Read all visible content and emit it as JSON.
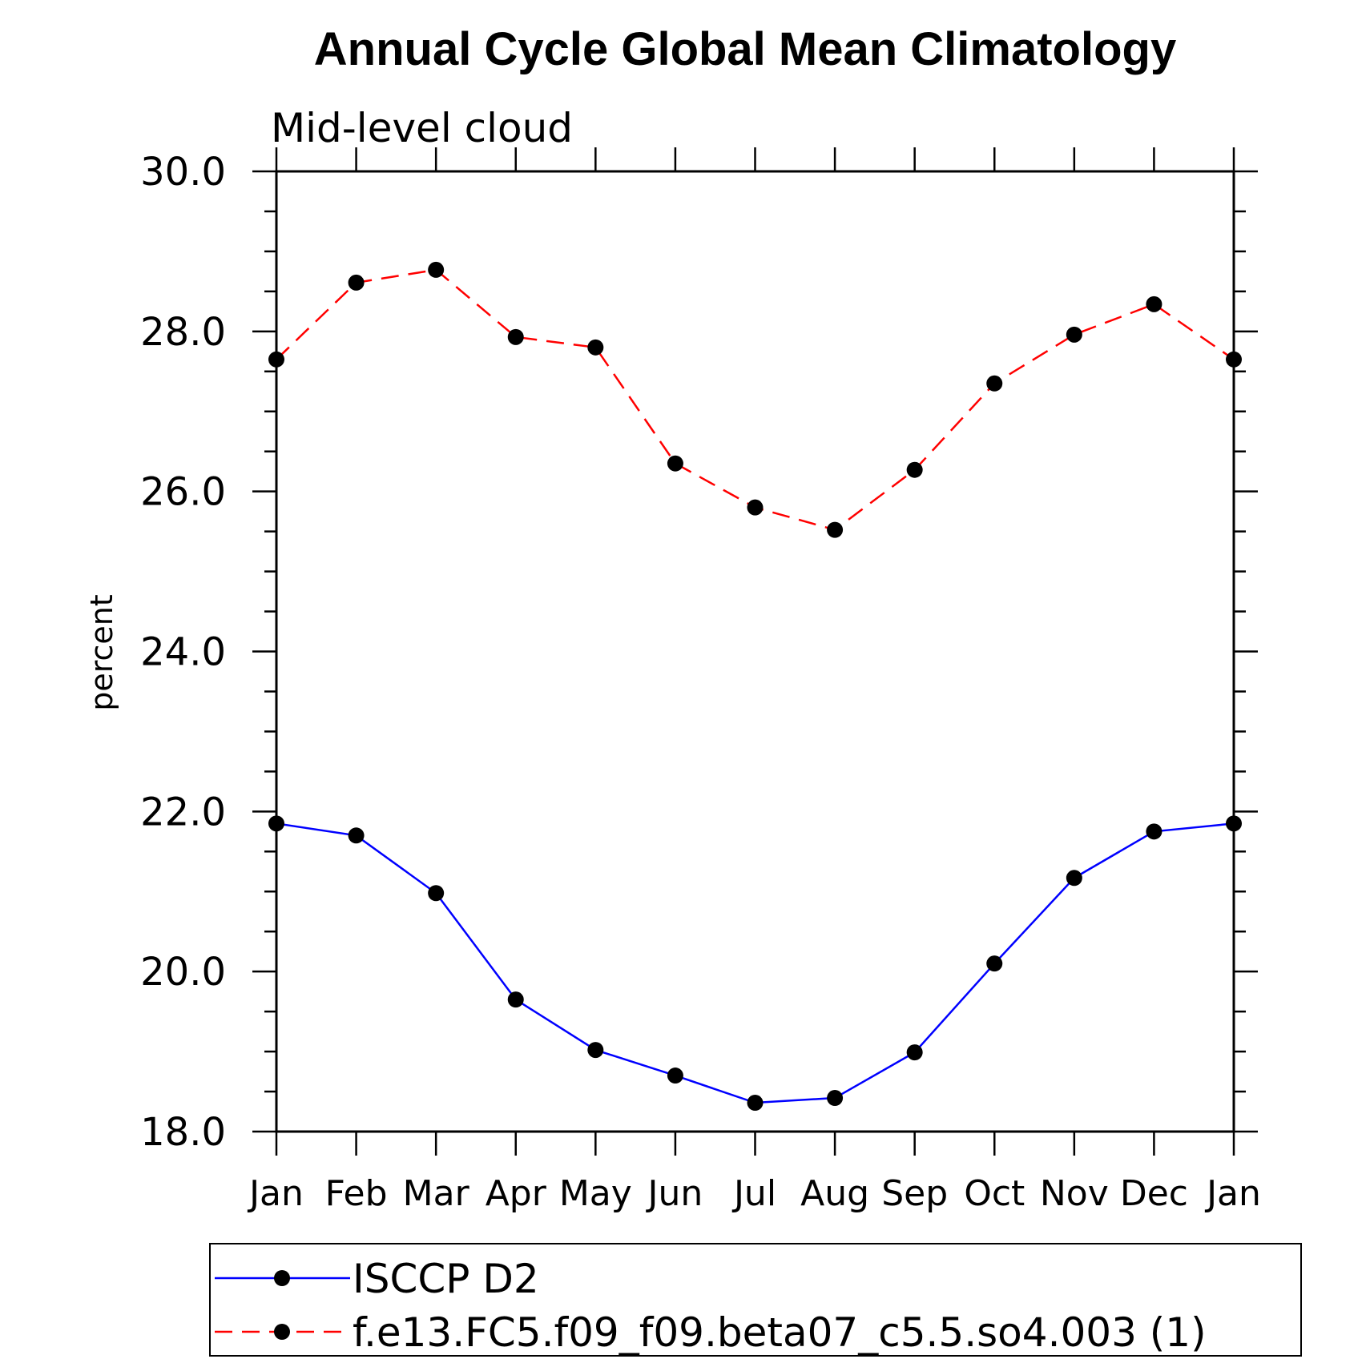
{
  "chart_data": {
    "type": "line",
    "title": "Annual Cycle Global Mean Climatology",
    "subtitle": "Mid-level cloud",
    "xlabel": "",
    "ylabel": "percent",
    "categories": [
      "Jan",
      "Feb",
      "Mar",
      "Apr",
      "May",
      "Jun",
      "Jul",
      "Aug",
      "Sep",
      "Oct",
      "Nov",
      "Dec",
      "Jan"
    ],
    "ylim": [
      18.0,
      30.0
    ],
    "yticks": [
      "18.0",
      "20.0",
      "22.0",
      "24.0",
      "26.0",
      "28.0",
      "30.0"
    ],
    "grid": false,
    "legend_position": "bottom",
    "series": [
      {
        "name": "ISCCP D2",
        "color": "#0000ff",
        "line_style": "solid",
        "marker": "filled-circle",
        "values": [
          21.85,
          21.7,
          20.98,
          19.65,
          19.02,
          18.7,
          18.36,
          18.42,
          18.99,
          20.1,
          21.17,
          21.75,
          21.85
        ]
      },
      {
        "name": "f.e13.FC5.f09_f09.beta07_c5.5.so4.003 (1)",
        "color": "#ff0000",
        "line_style": "dashed",
        "marker": "filled-circle",
        "values": [
          27.65,
          28.61,
          28.77,
          27.93,
          27.8,
          26.35,
          25.8,
          25.52,
          26.27,
          27.35,
          27.96,
          28.34,
          27.65
        ]
      }
    ]
  }
}
